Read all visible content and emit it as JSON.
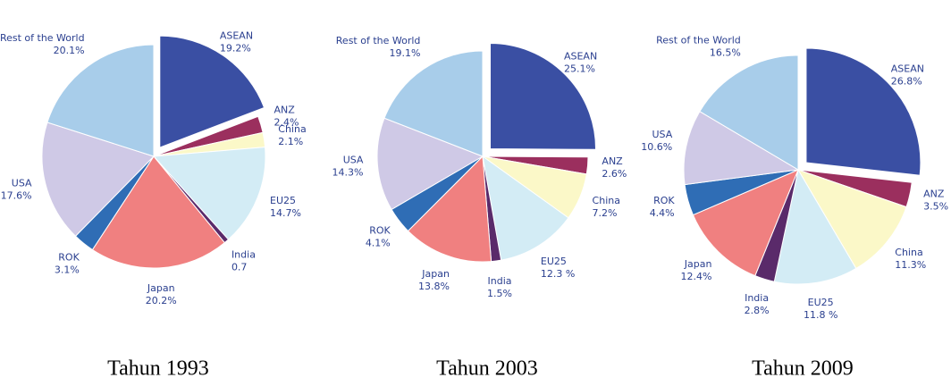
{
  "chart_data": [
    {
      "type": "pie",
      "title": "Tahun 1993",
      "categories": [
        "ASEAN",
        "ANZ",
        "China",
        "EU25",
        "India",
        "Japan",
        "ROK",
        "USA",
        "Rest of the World"
      ],
      "values": [
        19.2,
        2.4,
        2.1,
        14.7,
        0.7,
        20.2,
        3.1,
        17.6,
        20.1
      ],
      "value_labels": [
        "19.2%",
        "2.4%",
        "2.1%",
        "14.7%",
        "0.7",
        "20.2%",
        "3.1%",
        "17.6%",
        "20.1%"
      ],
      "colors": [
        "#3a4fa3",
        "#9b2f5e",
        "#fbf8c8",
        "#d3ecf5",
        "#5a2a6a",
        "#f08080",
        "#2f6db5",
        "#cfc9e6",
        "#a8cdea"
      ]
    },
    {
      "type": "pie",
      "title": "Tahun 2003",
      "categories": [
        "ASEAN",
        "ANZ",
        "China",
        "EU25",
        "India",
        "Japan",
        "ROK",
        "USA",
        "Rest of the World"
      ],
      "values": [
        25.1,
        2.6,
        7.2,
        12.3,
        1.5,
        13.8,
        4.1,
        14.3,
        19.1
      ],
      "value_labels": [
        "25.1%",
        "2.6%",
        "7.2%",
        "12.3 %",
        "1.5%",
        "13.8%",
        "4.1%",
        "14.3%",
        "19.1%"
      ],
      "colors": [
        "#3a4fa3",
        "#9b2f5e",
        "#fbf8c8",
        "#d3ecf5",
        "#5a2a6a",
        "#f08080",
        "#2f6db5",
        "#cfc9e6",
        "#a8cdea"
      ]
    },
    {
      "type": "pie",
      "title": "Tahun 2009",
      "categories": [
        "ASEAN",
        "ANZ",
        "China",
        "EU25",
        "India",
        "Japan",
        "ROK",
        "USA",
        "Rest of the World"
      ],
      "values": [
        26.8,
        3.5,
        11.3,
        11.8,
        2.8,
        12.4,
        4.4,
        10.6,
        16.5
      ],
      "value_labels": [
        "26.8%",
        "3.5%",
        "11.3%",
        "11.8 %",
        "2.8%",
        "12.4%",
        "4.4%",
        "10.6%",
        "16.5%"
      ],
      "colors": [
        "#3a4fa3",
        "#9b2f5e",
        "#fbf8c8",
        "#d3ecf5",
        "#5a2a6a",
        "#f08080",
        "#2f6db5",
        "#cfc9e6",
        "#a8cdea"
      ]
    }
  ]
}
